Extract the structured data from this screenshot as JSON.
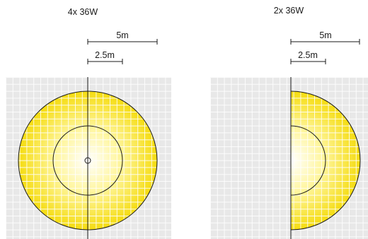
{
  "colors": {
    "background": "#ffffff",
    "grid_fill": "#e8e8e8",
    "grid_line": "#ffffff",
    "light_center": "#ffffff",
    "light_mid": "#fff6a0",
    "light_edge": "#f5dc10",
    "outline": "#1a1a1a"
  },
  "panels": [
    {
      "title": "4x 36W",
      "scale_5m_label": "5m",
      "scale_2_5m_label": "2.5m",
      "distribution": "full-circle",
      "outer_radius_m": 5,
      "inner_radius_m": 2.5,
      "center_marker": true
    },
    {
      "title": "2x 36W",
      "scale_5m_label": "5m",
      "scale_2_5m_label": "2.5m",
      "distribution": "half-circle-right",
      "outer_radius_m": 5,
      "inner_radius_m": 2.5,
      "center_marker": false
    }
  ]
}
